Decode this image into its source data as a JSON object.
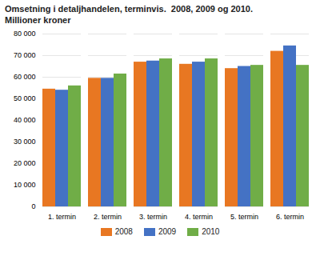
{
  "chart_data": {
    "type": "bar",
    "title": "Omsetning i detaljhandelen, terminvis.  2008, 2009 og 2010.",
    "subtitle": "Millioner kroner",
    "categories": [
      "1. termin",
      "2. termin",
      "3. termin",
      "4. termin",
      "5. termin",
      "6. termin"
    ],
    "series": [
      {
        "name": "2008",
        "color": "#E87722",
        "values": [
          54500,
          59500,
          67000,
          66000,
          64000,
          72000
        ]
      },
      {
        "name": "2009",
        "color": "#4472C4",
        "values": [
          54000,
          59500,
          67500,
          67000,
          65000,
          74500
        ]
      },
      {
        "name": "2010",
        "color": "#70AD47",
        "values": [
          56000,
          61500,
          68500,
          68500,
          65500,
          65500
        ]
      }
    ],
    "ylim": [
      0,
      80000
    ],
    "yticks": [
      0,
      {
        "value": 10000,
        "label": "10 000"
      },
      {
        "value": 20000,
        "label": "20 000"
      },
      {
        "value": 30000,
        "label": "30 000"
      },
      {
        "value": 40000,
        "label": "40 000"
      },
      {
        "value": 50000,
        "label": "50 000"
      },
      {
        "value": 60000,
        "label": "60 000"
      },
      {
        "value": 70000,
        "label": "70 000"
      },
      {
        "value": 80000,
        "label": "80 000"
      }
    ],
    "grid": true,
    "legend": "bottom"
  }
}
